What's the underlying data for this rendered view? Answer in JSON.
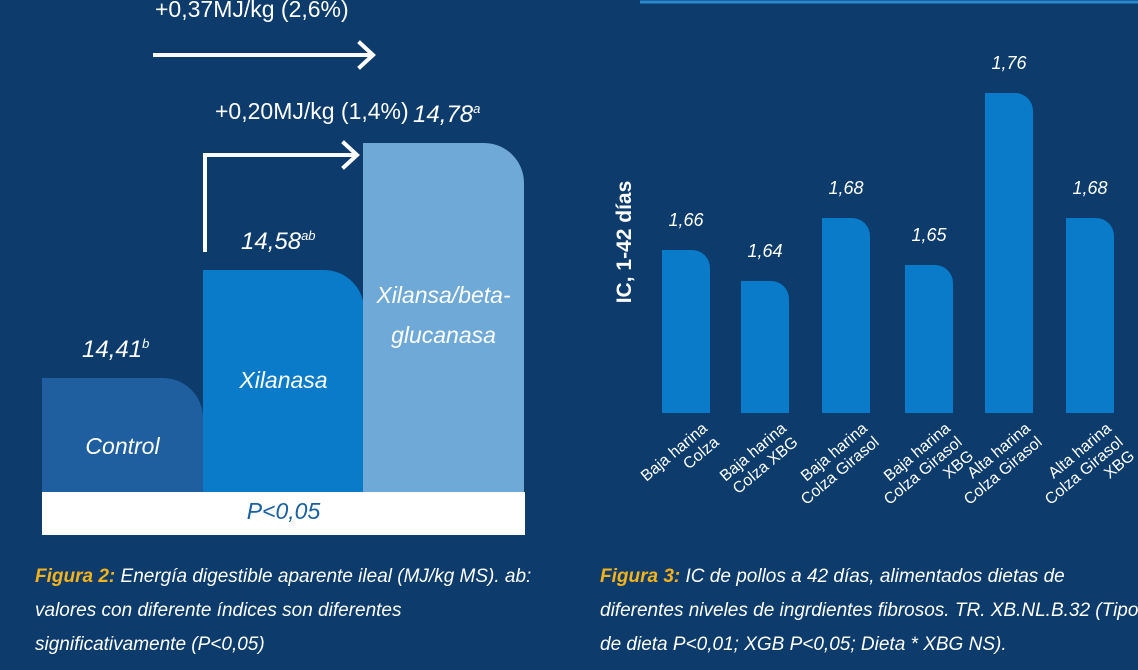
{
  "chart_data": [
    {
      "type": "bar",
      "categories": [
        "Control",
        "Xilanasa",
        "Xilansa/beta-glucanasa"
      ],
      "values": [
        14.41,
        14.58,
        14.78
      ],
      "value_labels": [
        "14,41",
        "14,58",
        "14,78"
      ],
      "letters": [
        "b",
        "ab",
        "a"
      ],
      "colors": [
        "#1f5f9f",
        "#0a7bc8",
        "#6fa9d7"
      ],
      "annotations": [
        "+0,37MJ/kg (2,6%)",
        "+0,20MJ/kg (1,4%)"
      ],
      "note": "P<0,05",
      "caption_label": "Figura 2:",
      "caption": "Energía digestible aparente ileal (MJ/kg MS). ab: valores con diferente índices son diferentes significativamente (P<0,05)"
    },
    {
      "type": "bar",
      "y_label": "IC, 1-42 días",
      "categories": [
        "Baja harina\nColza",
        "Baja harina\nColza XBG",
        "Baja harina\nColza Girasol",
        "Baja harina\nColza Girasol\nXBG",
        "Alta harina\nColza Girasol",
        "Alta harina\nColza Girasol\nXBG"
      ],
      "values": [
        1.66,
        1.64,
        1.68,
        1.65,
        1.76,
        1.68
      ],
      "value_labels": [
        "1,66",
        "1,64",
        "1,68",
        "1,65",
        "1,76",
        "1,68"
      ],
      "color": "#0a7bc8",
      "caption_label": "Figura 3:",
      "caption": "IC de pollos a 42 días, alimentados dietas de diferentes niveles de ingrdientes fibrosos. TR. XB.NL.B.32 (Tipo de dieta P<0,01; XGB P<0,05; Dieta * XBG NS)."
    }
  ]
}
